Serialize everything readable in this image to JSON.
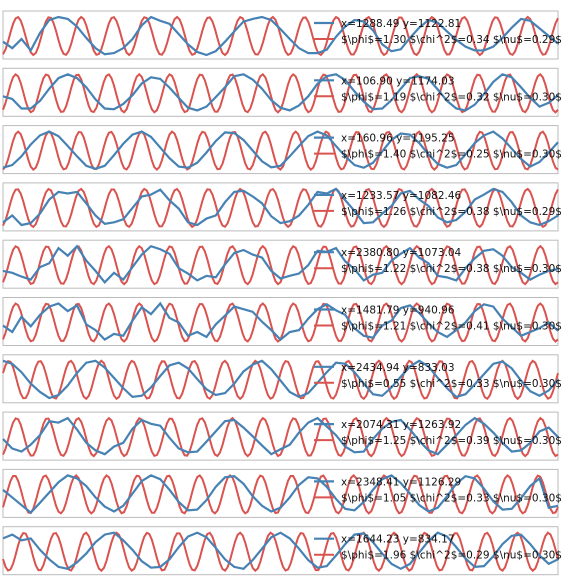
{
  "colors": {
    "observed": "#4682b4",
    "fit": "#d9534f",
    "frame": "#bbbbbb"
  },
  "chart_data": [
    {
      "type": "line",
      "panel": 1,
      "legend": [
        "x=1288.49 y=1122.81",
        "$\\phi$=1.30 $\\chi^2$=0.34 $\\nu$=0.29$"
      ],
      "fit": {
        "nu": 0.29,
        "phi": 1.3
      },
      "series": [
        {
          "name": "x=1288.49 y=1122.81",
          "values": [
            0.35,
            0.18,
            0.42,
            0.12,
            0.58,
            0.92,
            1.0,
            0.95,
            0.75,
            0.45,
            0.18,
            0.02,
            0.05,
            0.18,
            0.42,
            0.78,
            1.0,
            0.9,
            0.82,
            0.55,
            0.28,
            0.08,
            0.0,
            0.1,
            0.35,
            0.62,
            0.88,
            0.95,
            1.0,
            0.92,
            0.68,
            0.42,
            0.18,
            0.05,
            0.05,
            0.14,
            0.48,
            0.75,
            0.92,
            0.88,
            0.65,
            0.28,
            0.1,
            0.15,
            0.45,
            0.72,
            0.92,
            0.85,
            0.62,
            0.4,
            0.22,
            0.12,
            0.12,
            0.22,
            0.45,
            0.72,
            0.95,
            0.9,
            0.7,
            0.5,
            0.3
          ]
        }
      ]
    },
    {
      "type": "line",
      "panel": 2,
      "legend": [
        "x=106.90 y=1174.03",
        "$\\phi$=1.19 $\\chi^2$=0.32 $\\nu$=0.30$"
      ],
      "fit": {
        "nu": 0.3,
        "phi": 1.19
      },
      "series": [
        {
          "name": "x=106.90 y=1174.03",
          "values": [
            0.42,
            0.35,
            0.1,
            0.1,
            0.3,
            0.62,
            0.9,
            1.0,
            0.9,
            0.66,
            0.34,
            0.1,
            0.08,
            0.22,
            0.45,
            0.76,
            0.92,
            0.88,
            0.65,
            0.38,
            0.12,
            0.05,
            0.15,
            0.4,
            0.66,
            0.95,
            1.0,
            0.86,
            0.62,
            0.32,
            0.12,
            0.05,
            0.18,
            0.42,
            0.75,
            0.95,
            1.0,
            0.85,
            0.55,
            0.28,
            0.08,
            0.1,
            0.32,
            0.62,
            0.9,
            0.95,
            0.88,
            0.6,
            0.3,
            0.1,
            0.05,
            0.2,
            0.48,
            0.8,
            1.0,
            0.92,
            0.66,
            0.38,
            0.15,
            0.25,
            0.45
          ]
        }
      ]
    },
    {
      "type": "line",
      "panel": 3,
      "legend": [
        "x=160.96 y=1195.25",
        "$\\phi$=1.40 $\\chi^2$=0.25 $\\nu$=0.30$"
      ],
      "fit": {
        "nu": 0.3,
        "phi": 1.4
      },
      "series": [
        {
          "name": "x=160.96 y=1195.25",
          "values": [
            0.05,
            0.12,
            0.35,
            0.66,
            0.9,
            1.0,
            0.88,
            0.62,
            0.35,
            0.1,
            0.02,
            0.1,
            0.38,
            0.68,
            0.92,
            1.0,
            0.86,
            0.58,
            0.3,
            0.08,
            0.05,
            0.18,
            0.45,
            0.75,
            0.98,
            0.96,
            0.78,
            0.5,
            0.22,
            0.06,
            0.1,
            0.35,
            0.62,
            0.88,
            1.0,
            0.9,
            0.62,
            0.35,
            0.12,
            0.05,
            0.18,
            0.48,
            0.78,
            0.95,
            0.92,
            0.7,
            0.4,
            0.15,
            0.05,
            0.12,
            0.4,
            0.7,
            0.9,
            1.0,
            0.82,
            0.55,
            0.28,
            0.08,
            0.2,
            0.45,
            0.72
          ]
        }
      ]
    },
    {
      "type": "line",
      "panel": 4,
      "legend": [
        "x=1233.57 y=1082.46",
        "$\\phi$=1.26 $\\chi^2$=0.38 $\\nu$=0.29$"
      ],
      "fit": {
        "nu": 0.29,
        "phi": 1.26
      },
      "series": [
        {
          "name": "x=1233.57 y=1082.46",
          "values": [
            0.12,
            0.3,
            0.05,
            0.1,
            0.35,
            0.72,
            0.92,
            0.88,
            0.92,
            0.62,
            0.3,
            0.08,
            0.12,
            0.2,
            0.5,
            0.8,
            0.85,
            0.98,
            0.7,
            0.48,
            0.12,
            0.05,
            0.22,
            0.3,
            0.65,
            0.92,
            0.95,
            0.8,
            0.62,
            0.28,
            0.1,
            0.15,
            0.3,
            0.58,
            0.92,
            0.88,
            1.0,
            0.7,
            0.42,
            0.1,
            0.12,
            0.35,
            0.55,
            0.88,
            0.95,
            0.72,
            0.55,
            0.25,
            0.12,
            0.18,
            0.4,
            0.72,
            0.85,
            1.0,
            0.92,
            0.65,
            0.3,
            0.12,
            0.05,
            0.15,
            0.3
          ]
        }
      ]
    },
    {
      "type": "line",
      "panel": 5,
      "legend": [
        "x=2380.80 y=1073.04",
        "$\\phi$=1.22 $\\chi^2$=0.38 $\\nu$=0.30$"
      ],
      "fit": {
        "nu": 0.3,
        "phi": 1.22
      },
      "series": [
        {
          "name": "x=2380.80 y=1073.04",
          "values": [
            0.35,
            0.3,
            0.2,
            0.12,
            0.45,
            0.55,
            0.95,
            0.75,
            1.0,
            0.62,
            0.35,
            0.05,
            0.3,
            0.12,
            0.45,
            0.78,
            1.0,
            0.92,
            0.8,
            0.42,
            0.28,
            0.1,
            0.22,
            0.18,
            0.52,
            0.82,
            0.9,
            0.78,
            0.7,
            0.35,
            0.15,
            0.22,
            0.28,
            0.5,
            0.88,
            0.85,
            0.95,
            0.6,
            0.4,
            0.1,
            0.25,
            0.3,
            0.62,
            0.8,
            0.95,
            0.7,
            0.55,
            0.22,
            0.18,
            0.1,
            0.42,
            0.68,
            0.88,
            0.92,
            0.75,
            0.45,
            0.3,
            0.12,
            0.25,
            0.35,
            0.4
          ]
        }
      ]
    },
    {
      "type": "line",
      "panel": 6,
      "legend": [
        "x=1481.79 y=940.96",
        "$\\phi$=1.21 $\\chi^2$=0.41 $\\nu$=0.30$"
      ],
      "fit": {
        "nu": 0.3,
        "phi": 1.21
      },
      "series": [
        {
          "name": "x=1481.79 y=940.96",
          "values": [
            0.42,
            0.25,
            0.65,
            0.4,
            0.7,
            0.92,
            1.0,
            0.8,
            0.95,
            0.45,
            0.3,
            0.05,
            0.2,
            0.15,
            0.55,
            0.9,
            0.72,
            1.0,
            0.62,
            0.5,
            0.15,
            0.25,
            0.12,
            0.45,
            0.68,
            0.92,
            0.85,
            0.78,
            0.52,
            0.3,
            0.05,
            0.25,
            0.3,
            0.6,
            0.85,
            0.98,
            0.82,
            0.7,
            0.35,
            0.15,
            0.1,
            0.42,
            0.55,
            0.88,
            0.95,
            0.75,
            0.48,
            0.25,
            0.12,
            0.3,
            0.5,
            0.8,
            0.98,
            0.92,
            0.6,
            0.38,
            0.15,
            0.25,
            0.35,
            0.5,
            0.28
          ]
        }
      ]
    },
    {
      "type": "line",
      "panel": 7,
      "legend": [
        "x=2434.94 y=833.03",
        "$\\phi$=0.55 $\\chi^2$=0.33 $\\nu$=0.30$"
      ],
      "fit": {
        "nu": 0.3,
        "phi": 0.55
      },
      "series": [
        {
          "name": "x=2434.94 y=833.03",
          "values": [
            1.0,
            0.92,
            0.7,
            0.4,
            0.18,
            0.02,
            0.1,
            0.35,
            0.68,
            0.95,
            1.0,
            0.82,
            0.55,
            0.28,
            0.05,
            0.08,
            0.3,
            0.6,
            0.88,
            0.95,
            0.8,
            0.52,
            0.25,
            0.1,
            0.15,
            0.4,
            0.72,
            0.9,
            1.0,
            0.78,
            0.48,
            0.18,
            0.05,
            0.15,
            0.42,
            0.7,
            0.95,
            0.92,
            0.7,
            0.4,
            0.12,
            0.08,
            0.3,
            0.58,
            0.85,
            1.0,
            0.85,
            0.55,
            0.28,
            0.05,
            0.12,
            0.38,
            0.65,
            0.92,
            0.98,
            0.8,
            0.48,
            0.2,
            0.08,
            0.22,
            0.5
          ]
        }
      ]
    },
    {
      "type": "line",
      "panel": 8,
      "legend": [
        "x=2074.31 y=1263.92",
        "$\\phi$=1.25 $\\chi^2$=0.39 $\\nu$=0.30$"
      ],
      "fit": {
        "nu": 0.3,
        "phi": 1.25
      },
      "series": [
        {
          "name": "x=2074.31 y=1263.92",
          "values": [
            0.45,
            0.2,
            0.12,
            0.3,
            0.55,
            0.92,
            0.88,
            1.0,
            0.7,
            0.35,
            0.15,
            0.05,
            0.25,
            0.35,
            0.72,
            0.95,
            0.85,
            0.8,
            0.48,
            0.2,
            0.1,
            0.12,
            0.38,
            0.65,
            0.92,
            0.95,
            0.75,
            0.52,
            0.28,
            0.05,
            0.18,
            0.3,
            0.62,
            0.88,
            1.0,
            0.78,
            0.55,
            0.25,
            0.1,
            0.12,
            0.45,
            0.72,
            0.9,
            0.95,
            0.7,
            0.4,
            0.15,
            0.05,
            0.3,
            0.55,
            0.82,
            1.0,
            0.85,
            0.62,
            0.35,
            0.12,
            0.15,
            0.35,
            0.65,
            0.75,
            0.5
          ]
        }
      ]
    },
    {
      "type": "line",
      "panel": 9,
      "legend": [
        "x=2348.41 y=1126.29",
        "$\\phi$=1.05 $\\chi^2$=0.33 $\\nu$=0.30$"
      ],
      "fit": {
        "nu": 0.3,
        "phi": 1.05
      },
      "series": [
        {
          "name": "x=2348.41 y=1126.29",
          "values": [
            0.62,
            0.42,
            0.22,
            0.02,
            0.28,
            0.55,
            0.82,
            1.0,
            0.92,
            0.72,
            0.42,
            0.18,
            0.05,
            0.2,
            0.52,
            0.85,
            1.0,
            0.9,
            0.62,
            0.3,
            0.08,
            0.1,
            0.35,
            0.7,
            0.95,
            0.98,
            0.78,
            0.45,
            0.2,
            0.05,
            0.15,
            0.42,
            0.75,
            0.95,
            0.92,
            0.7,
            0.38,
            0.12,
            0.08,
            0.3,
            0.62,
            0.9,
            1.0,
            0.8,
            0.52,
            0.22,
            0.05,
            0.15,
            0.45,
            0.78,
            0.98,
            0.92,
            0.65,
            0.32,
            0.1,
            0.12,
            0.4,
            0.72,
            0.92,
            0.15,
            0.2
          ]
        }
      ]
    },
    {
      "type": "line",
      "panel": 10,
      "legend": [
        "x=1644.23 y=834.17",
        "$\\phi$=1.96 $\\chi^2$=0.29 $\\nu$=0.30$"
      ],
      "fit": {
        "nu": 0.3,
        "phi": 1.96
      },
      "series": [
        {
          "name": "x=1644.23 y=834.17",
          "values": [
            0.85,
            0.95,
            0.8,
            0.85,
            0.55,
            0.3,
            0.1,
            0.05,
            0.22,
            0.45,
            0.75,
            0.95,
            1.0,
            0.8,
            0.55,
            0.25,
            0.08,
            0.1,
            0.3,
            0.62,
            0.9,
            1.0,
            0.88,
            0.6,
            0.3,
            0.1,
            0.05,
            0.28,
            0.58,
            0.88,
            1.0,
            0.85,
            0.58,
            0.28,
            0.08,
            0.12,
            0.4,
            0.7,
            0.95,
            0.98,
            0.75,
            0.45,
            0.18,
            0.05,
            0.18,
            0.48,
            0.78,
            1.0,
            0.9,
            0.62,
            0.32,
            0.1,
            0.12,
            0.38,
            0.7,
            0.92,
            0.95,
            0.7,
            0.4,
            0.18,
            0.3
          ]
        }
      ]
    }
  ]
}
